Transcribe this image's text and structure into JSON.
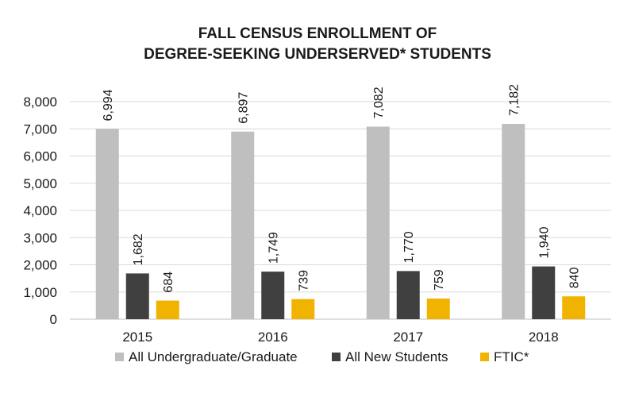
{
  "chart_data": {
    "type": "bar",
    "title_lines": [
      "FALL CENSUS ENROLLMENT OF",
      "DEGREE-SEEKING UNDERSERVED* STUDENTS"
    ],
    "categories": [
      "2015",
      "2016",
      "2017",
      "2018"
    ],
    "series": [
      {
        "name": "All Undergraduate/Graduate",
        "color": "#bfbfbf",
        "values": [
          6994,
          6897,
          7082,
          7182
        ],
        "labels": [
          "6,994",
          "6,897",
          "7,082",
          "7,182"
        ]
      },
      {
        "name": "All New Students",
        "color": "#404040",
        "values": [
          1682,
          1749,
          1770,
          1940
        ],
        "labels": [
          "1,682",
          "1,749",
          "1,770",
          "1,940"
        ]
      },
      {
        "name": "FTIC*",
        "color": "#f0b400",
        "values": [
          684,
          739,
          759,
          840
        ],
        "labels": [
          "684",
          "739",
          "759",
          "840"
        ]
      }
    ],
    "y_ticks": [
      "0",
      "1,000",
      "2,000",
      "3,000",
      "4,000",
      "5,000",
      "6,000",
      "7,000",
      "8,000"
    ],
    "ylim": [
      0,
      8000
    ],
    "xlabel": "",
    "ylabel": "",
    "grid": true,
    "legend_position": "bottom"
  }
}
